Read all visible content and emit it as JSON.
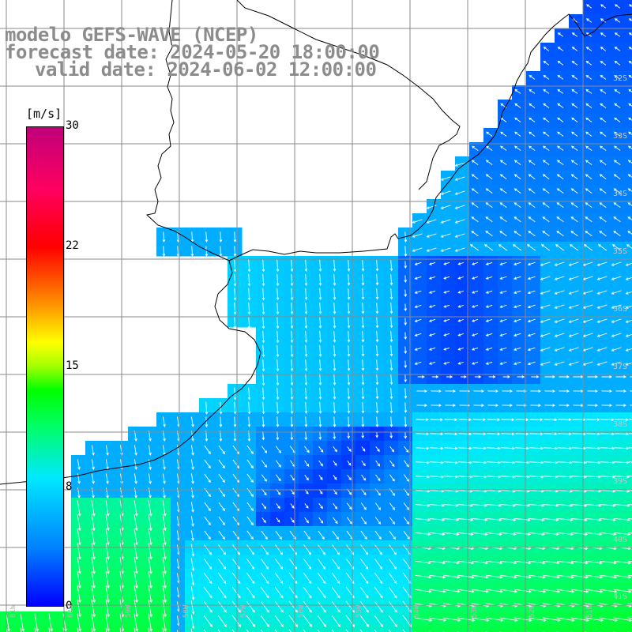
{
  "title": {
    "line1": "modelo GEFS-WAVE (NCEP)",
    "line2": "forecast date: 2024-05-20 18:00:00",
    "line3": "valid date: 2024-06-02 12:00:00"
  },
  "colorbar": {
    "unit": "[m/s]",
    "ticks": [
      "30",
      "22",
      "15",
      "8",
      "0"
    ],
    "min": 0,
    "max": 30,
    "colors": [
      "#0000ff",
      "#00e8ff",
      "#00ff00",
      "#ffff00",
      "#ff0000",
      "#c0007a"
    ]
  },
  "map": {
    "lat_labels": [
      "32S",
      "33S",
      "34S",
      "35S",
      "36S",
      "37S",
      "38S",
      "39S",
      "40S",
      "41S"
    ],
    "lon_labels": [
      "61W",
      "60W",
      "59W",
      "58W",
      "57W",
      "56W",
      "55W",
      "54W",
      "53W",
      "52W",
      "51W"
    ],
    "land_color": "#ffffff",
    "grid_color": "#8a8a8a"
  }
}
